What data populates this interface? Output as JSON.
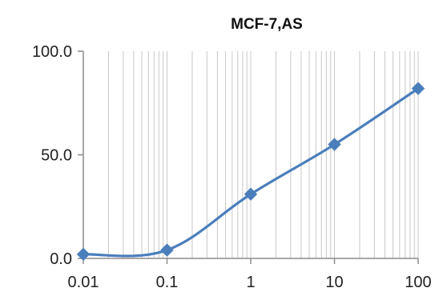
{
  "chart_data": {
    "type": "line",
    "title": "MCF-7,AS",
    "xlabel": "",
    "ylabel": "",
    "xscale": "log",
    "xlim": [
      0.01,
      100
    ],
    "ylim": [
      0,
      100
    ],
    "grid": {
      "vertical_minor": true,
      "horizontal": false
    },
    "legend": "none",
    "x_tick_labels": [
      "0.01",
      "0.1",
      "1",
      "10",
      "100"
    ],
    "x_ticks": [
      0.01,
      0.1,
      1,
      10,
      100
    ],
    "y_tick_labels": [
      "0.0",
      "50.0",
      "100.0"
    ],
    "y_ticks": [
      0,
      50,
      100
    ],
    "series": [
      {
        "x": [
          0.01,
          0.1,
          1,
          10,
          100
        ],
        "y": [
          2,
          4,
          31,
          55,
          82
        ],
        "color": "#4a7ebb",
        "marker": "diamond",
        "smooth": true
      }
    ]
  }
}
